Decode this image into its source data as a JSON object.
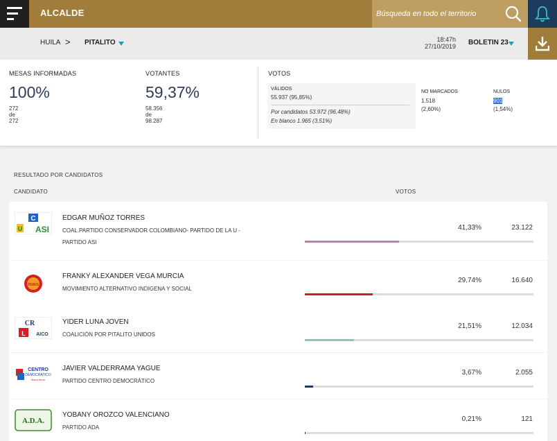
{
  "header": {
    "title": "ALCALDE",
    "search_placeholder": "Búsqueda en todo el territorio",
    "menu_icon": "hamburger-icon",
    "bell_icon": "bell-icon",
    "colors": {
      "bar": "#a07d3b",
      "search": "#bf9e62",
      "bell_bg": "#1f3b5c",
      "menu_bg": "#1f1f1f"
    }
  },
  "breadcrumb": {
    "level1": "HUILA",
    "separator": ">",
    "level2": "PITALITO"
  },
  "report": {
    "time": "18:47h",
    "date": "27/10/2019",
    "bulletin": "BOLETIN 23"
  },
  "stats": {
    "mesas": {
      "label": "MESAS INFORMADAS",
      "percent": "100%",
      "num": "272",
      "de": "de",
      "total": "272"
    },
    "votantes": {
      "label": "VOTANTES",
      "percent": "59,37%",
      "num": "58.356",
      "de": "de",
      "total": "98.287"
    },
    "votos": {
      "label": "VOTOS",
      "validos_label": "VÁLIDOS",
      "validos_value": "55.937 (95,85%)",
      "por_candidatos": "Por candidatos   53.972 (96,48%)",
      "en_blanco": "En blanco   1.965 (3,51%)",
      "no_marcados_label": "NO MARCADOS",
      "no_marcados_value": "1.518",
      "no_marcados_pct": "(2,60%)",
      "nulos_label": "NULOS",
      "nulos_value": "901",
      "nulos_pct": "(1,54%)"
    }
  },
  "results": {
    "section_title": "RESULTADO POR CANDIDATOS",
    "col_candidate": "CANDIDATO",
    "col_votes": "VOTOS",
    "candidates": [
      {
        "name": "EDGAR MUÑOZ TORRES",
        "party_line1": "COAL.PARTIDO CONSERVADOR COLOMBIANO- PARTIDO DE LA U -",
        "party_line2": "PARTIDO ASI",
        "pct": "41,33%",
        "votes": "23.122",
        "share": 0.4133,
        "color": "#c47fb0",
        "logo_text": "U  ASI"
      },
      {
        "name": "FRANKY ALEXANDER VEGA MURCIA",
        "party_line1": "MOVIMIENTO ALTERNATIVO INDIGENA Y SOCIAL",
        "party_line2": "",
        "pct": "29,74%",
        "votes": "16.640",
        "share": 0.2974,
        "color": "#c8202a",
        "logo_text": "mais"
      },
      {
        "name": "YIDER LUNA JOVEN",
        "party_line1": "COALICIÓN POR PITALITO UNIDOS",
        "party_line2": "",
        "pct": "21,51%",
        "votes": "12.034",
        "share": 0.2151,
        "color": "#8ec6bd",
        "logo_text": "AICO"
      },
      {
        "name": "JAVIER VALDERRAMA YAGUE",
        "party_line1": "PARTIDO CENTRO DEMOCRÁTICO",
        "party_line2": "",
        "pct": "3,67%",
        "votes": "2.055",
        "share": 0.0367,
        "color": "#1f3b5c",
        "logo_text": "CENTRO DEMOCRÁTICO"
      },
      {
        "name": "YOBANY OROZCO VALENCIANO",
        "party_line1": "PARTIDO ADA",
        "party_line2": "",
        "pct": "0,21%",
        "votes": "121",
        "share": 0.0021,
        "color": "#1f3b5c",
        "logo_text": "A.D.A."
      }
    ]
  }
}
